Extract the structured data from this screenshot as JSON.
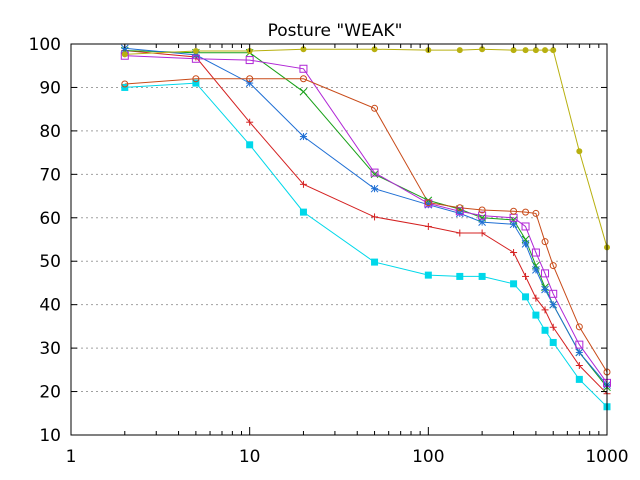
{
  "chart_data": {
    "type": "line",
    "title": "Posture \"WEAK\"",
    "xlabel": "",
    "ylabel": "",
    "xscale": "log",
    "xlim": [
      1,
      1000
    ],
    "ylim": [
      10,
      100
    ],
    "grid": "horizontal-dotted",
    "xticks": [
      {
        "value": 1,
        "label": "1"
      },
      {
        "value": 10,
        "label": "10"
      },
      {
        "value": 100,
        "label": "100"
      },
      {
        "value": 1000,
        "label": "1000"
      }
    ],
    "yticks": [
      {
        "value": 10,
        "label": "10"
      },
      {
        "value": 20,
        "label": "20"
      },
      {
        "value": 30,
        "label": "30"
      },
      {
        "value": 40,
        "label": "40"
      },
      {
        "value": 50,
        "label": "50"
      },
      {
        "value": 60,
        "label": "60"
      },
      {
        "value": 70,
        "label": "70"
      },
      {
        "value": 80,
        "label": "80"
      },
      {
        "value": 90,
        "label": "90"
      },
      {
        "value": 100,
        "label": "100"
      }
    ],
    "series": [
      {
        "name": "series-1",
        "color": "#d42020",
        "marker": "plus",
        "x": [
          2,
          5,
          10,
          20,
          50,
          100,
          150,
          200,
          300,
          350,
          400,
          450,
          500,
          700,
          1000
        ],
        "y": [
          98.5,
          97.0,
          82.0,
          67.7,
          60.2,
          58.0,
          56.5,
          56.5,
          52.0,
          46.5,
          41.5,
          38.8,
          34.8,
          26.0,
          19.5
        ]
      },
      {
        "name": "series-2",
        "color": "#18a018",
        "marker": "cross",
        "x": [
          2,
          5,
          10,
          20,
          50,
          100,
          150,
          200,
          300,
          350,
          400,
          450,
          500,
          700,
          1000
        ],
        "y": [
          98.5,
          98.0,
          98.0,
          89.0,
          70.0,
          64.0,
          62.0,
          60.0,
          59.5,
          55.0,
          49.0,
          44.0,
          40.0,
          29.0,
          21.0
        ]
      },
      {
        "name": "series-3",
        "color": "#1f6fd4",
        "marker": "star",
        "x": [
          2,
          5,
          10,
          20,
          50,
          100,
          150,
          200,
          300,
          350,
          400,
          450,
          500,
          700,
          1000
        ],
        "y": [
          99.0,
          97.5,
          91.0,
          78.7,
          66.7,
          63.0,
          61.0,
          59.0,
          58.5,
          54.0,
          48.0,
          43.5,
          40.0,
          29.0,
          21.5
        ]
      },
      {
        "name": "series-4",
        "color": "#b026d6",
        "marker": "square-open",
        "x": [
          2,
          5,
          10,
          20,
          50,
          100,
          150,
          200,
          300,
          350,
          400,
          450,
          500,
          700,
          1000
        ],
        "y": [
          97.3,
          96.6,
          96.3,
          94.3,
          70.4,
          63.3,
          61.5,
          60.5,
          60.0,
          58.0,
          52.0,
          47.2,
          42.5,
          30.8,
          22.0
        ]
      },
      {
        "name": "series-5",
        "color": "#00d8ea",
        "marker": "square-filled",
        "x": [
          2,
          5,
          10,
          20,
          50,
          100,
          150,
          200,
          300,
          350,
          400,
          450,
          500,
          700,
          1000
        ],
        "y": [
          90.0,
          91.0,
          76.8,
          61.3,
          49.8,
          46.8,
          46.5,
          46.5,
          44.8,
          41.8,
          37.6,
          34.1,
          31.3,
          22.8,
          16.5
        ]
      },
      {
        "name": "series-6",
        "color": "#b8b010",
        "marker": "circle-filled",
        "x": [
          2,
          5,
          10,
          20,
          50,
          100,
          150,
          200,
          300,
          350,
          400,
          450,
          500,
          700,
          1000
        ],
        "y": [
          97.6,
          98.4,
          98.4,
          98.8,
          98.8,
          98.6,
          98.6,
          98.8,
          98.6,
          98.6,
          98.6,
          98.6,
          98.6,
          75.3,
          53.2
        ]
      },
      {
        "name": "series-7",
        "color": "#c84a18",
        "marker": "circle-open",
        "x": [
          2,
          5,
          10,
          20,
          50,
          100,
          150,
          200,
          300,
          350,
          400,
          450,
          500,
          700,
          1000
        ],
        "y": [
          90.8,
          92.0,
          92.0,
          92.0,
          85.2,
          63.5,
          62.3,
          61.8,
          61.5,
          61.3,
          61.0,
          54.5,
          49.0,
          34.9,
          24.5
        ]
      }
    ]
  }
}
